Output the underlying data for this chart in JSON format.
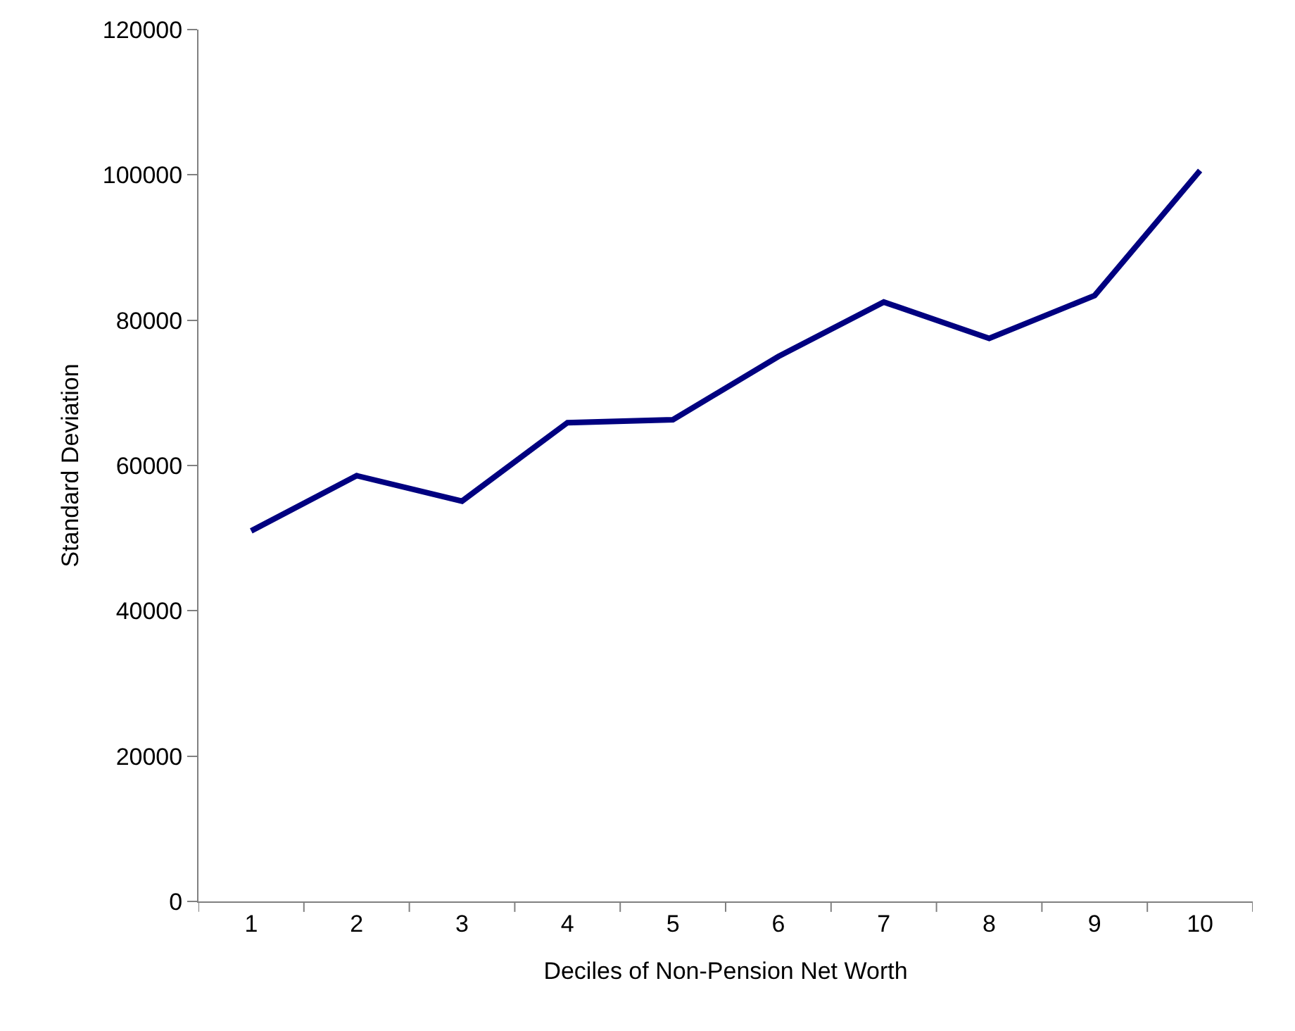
{
  "chart_data": {
    "type": "line",
    "xlabel": "Deciles of Non-Pension Net Worth",
    "ylabel": "Standard Deviation",
    "categories": [
      "1",
      "2",
      "3",
      "4",
      "5",
      "6",
      "7",
      "8",
      "9",
      "10"
    ],
    "series": [
      {
        "color": "#000080",
        "values": [
          51000,
          58600,
          55100,
          65900,
          66300,
          75000,
          82500,
          77500,
          83400,
          100600
        ]
      }
    ],
    "ylim": [
      0,
      120000
    ],
    "yticks": [
      0,
      20000,
      40000,
      60000,
      80000,
      100000,
      120000
    ],
    "marker": "none",
    "line_style": "solid"
  }
}
